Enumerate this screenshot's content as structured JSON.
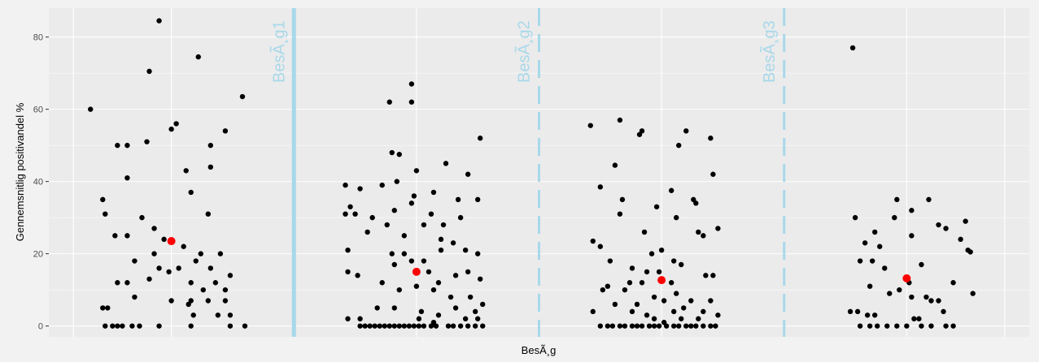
{
  "chart_data": {
    "type": "scatter",
    "title": "",
    "xlabel": "BesÃ¸g",
    "ylabel": "Gennemsnitlig positivandel %",
    "ylim": [
      -3,
      88
    ],
    "yticks": [
      0,
      20,
      40,
      60,
      80
    ],
    "xlim": [
      0.5,
      4.5
    ],
    "grid": true,
    "background": "#ebebeb",
    "grid_color": "#ffffff",
    "point_color": "#000000",
    "mean_color": "#ff0000",
    "vline_color": "#a8d8ea",
    "vlines": [
      {
        "x": 1.5,
        "label": "BesÃ¸g1",
        "style": "solid"
      },
      {
        "x": 2.5,
        "label": "BesÃ¸g2",
        "style": "dashed"
      },
      {
        "x": 3.5,
        "label": "BesÃ¸g3",
        "style": "dashed"
      }
    ],
    "means": [
      {
        "x": 1.0,
        "y": 23.5
      },
      {
        "x": 2.0,
        "y": 15.0
      },
      {
        "x": 3.0,
        "y": 12.7
      },
      {
        "x": 4.0,
        "y": 13.2
      }
    ],
    "points": [
      [
        0.95,
        84.5
      ],
      [
        0.67,
        60
      ],
      [
        1.02,
        56
      ],
      [
        1.0,
        54.5
      ],
      [
        0.78,
        50
      ],
      [
        0.82,
        50
      ],
      [
        0.9,
        51
      ],
      [
        1.16,
        50
      ],
      [
        1.22,
        54
      ],
      [
        1.11,
        74.5
      ],
      [
        1.29,
        63.5
      ],
      [
        0.91,
        70.5
      ],
      [
        0.82,
        41
      ],
      [
        1.06,
        43
      ],
      [
        1.16,
        44
      ],
      [
        1.08,
        37
      ],
      [
        0.72,
        35
      ],
      [
        0.73,
        31
      ],
      [
        1.15,
        31
      ],
      [
        0.88,
        30
      ],
      [
        0.82,
        25
      ],
      [
        0.77,
        25
      ],
      [
        0.93,
        27
      ],
      [
        0.97,
        24
      ],
      [
        1.05,
        22
      ],
      [
        1.12,
        20
      ],
      [
        1.2,
        20
      ],
      [
        1.1,
        18
      ],
      [
        1.16,
        16
      ],
      [
        1.24,
        14
      ],
      [
        0.85,
        18
      ],
      [
        0.95,
        16
      ],
      [
        0.99,
        15
      ],
      [
        1.03,
        16
      ],
      [
        0.82,
        12
      ],
      [
        1.08,
        12
      ],
      [
        1.22,
        10
      ],
      [
        0.85,
        8
      ],
      [
        1.0,
        7
      ],
      [
        1.08,
        7
      ],
      [
        1.15,
        7
      ],
      [
        1.22,
        7
      ],
      [
        0.78,
        12
      ],
      [
        0.72,
        5
      ],
      [
        0.74,
        5
      ],
      [
        1.09,
        3
      ],
      [
        1.19,
        3
      ],
      [
        1.24,
        3
      ],
      [
        0.73,
        0
      ],
      [
        0.76,
        0
      ],
      [
        0.78,
        0
      ],
      [
        0.8,
        0
      ],
      [
        0.84,
        0
      ],
      [
        0.87,
        0
      ],
      [
        0.95,
        0
      ],
      [
        1.08,
        0
      ],
      [
        1.24,
        0
      ],
      [
        1.3,
        0
      ],
      [
        1.07,
        6
      ],
      [
        1.13,
        10
      ],
      [
        1.18,
        12
      ],
      [
        0.91,
        13
      ],
      [
        0.93,
        20
      ],
      [
        1.98,
        67
      ],
      [
        1.89,
        62
      ],
      [
        1.98,
        62
      ],
      [
        1.9,
        48
      ],
      [
        1.93,
        47.5
      ],
      [
        2.0,
        43
      ],
      [
        2.12,
        45
      ],
      [
        2.21,
        42
      ],
      [
        2.26,
        52
      ],
      [
        1.71,
        39
      ],
      [
        1.77,
        38
      ],
      [
        1.86,
        39
      ],
      [
        1.92,
        40
      ],
      [
        1.99,
        36
      ],
      [
        2.07,
        37
      ],
      [
        2.17,
        35
      ],
      [
        2.25,
        35
      ],
      [
        1.73,
        33
      ],
      [
        1.71,
        31
      ],
      [
        1.75,
        31
      ],
      [
        1.82,
        30
      ],
      [
        1.91,
        32
      ],
      [
        1.98,
        34
      ],
      [
        2.06,
        31
      ],
      [
        2.11,
        28
      ],
      [
        2.18,
        30
      ],
      [
        1.8,
        26
      ],
      [
        1.88,
        28
      ],
      [
        1.95,
        25
      ],
      [
        2.03,
        28
      ],
      [
        2.1,
        24
      ],
      [
        2.15,
        23
      ],
      [
        1.72,
        21
      ],
      [
        1.9,
        20
      ],
      [
        1.95,
        20
      ],
      [
        2.03,
        18
      ],
      [
        2.1,
        21
      ],
      [
        2.2,
        21
      ],
      [
        2.25,
        20
      ],
      [
        1.72,
        15
      ],
      [
        1.76,
        14
      ],
      [
        1.86,
        12
      ],
      [
        1.91,
        17
      ],
      [
        1.98,
        18
      ],
      [
        2.05,
        15
      ],
      [
        2.09,
        12
      ],
      [
        2.16,
        14
      ],
      [
        2.21,
        15
      ],
      [
        2.26,
        13
      ],
      [
        1.93,
        10
      ],
      [
        2.0,
        11
      ],
      [
        2.07,
        10
      ],
      [
        2.14,
        8
      ],
      [
        2.22,
        8
      ],
      [
        2.27,
        6
      ],
      [
        1.84,
        5
      ],
      [
        1.91,
        5
      ],
      [
        2.02,
        4
      ],
      [
        2.09,
        3
      ],
      [
        2.16,
        5
      ],
      [
        2.24,
        4
      ],
      [
        1.72,
        2
      ],
      [
        1.77,
        2
      ],
      [
        2.01,
        2
      ],
      [
        2.07,
        1
      ],
      [
        2.2,
        2
      ],
      [
        2.25,
        2
      ],
      [
        1.77,
        0
      ],
      [
        1.79,
        0
      ],
      [
        1.81,
        0
      ],
      [
        1.83,
        0
      ],
      [
        1.85,
        0
      ],
      [
        1.87,
        0
      ],
      [
        1.89,
        0
      ],
      [
        1.91,
        0
      ],
      [
        1.93,
        0
      ],
      [
        1.95,
        0
      ],
      [
        1.97,
        0
      ],
      [
        1.99,
        0
      ],
      [
        2.01,
        0
      ],
      [
        2.03,
        0
      ],
      [
        2.06,
        0
      ],
      [
        2.08,
        0
      ],
      [
        2.13,
        0
      ],
      [
        2.15,
        0
      ],
      [
        2.18,
        0
      ],
      [
        2.21,
        0
      ],
      [
        2.24,
        0
      ],
      [
        2.27,
        0
      ],
      [
        2.71,
        55.5
      ],
      [
        2.83,
        57
      ],
      [
        2.91,
        53
      ],
      [
        2.92,
        54
      ],
      [
        3.1,
        54
      ],
      [
        3.07,
        50
      ],
      [
        3.2,
        52
      ],
      [
        2.81,
        44.5
      ],
      [
        3.21,
        42
      ],
      [
        2.75,
        38.5
      ],
      [
        3.04,
        37.5
      ],
      [
        2.84,
        35
      ],
      [
        3.13,
        35
      ],
      [
        3.14,
        34
      ],
      [
        2.98,
        33
      ],
      [
        2.83,
        31
      ],
      [
        3.06,
        30
      ],
      [
        3.23,
        27
      ],
      [
        2.72,
        23.5
      ],
      [
        2.75,
        22
      ],
      [
        2.93,
        26
      ],
      [
        3.15,
        26
      ],
      [
        3.17,
        25
      ],
      [
        3.0,
        21
      ],
      [
        2.96,
        20
      ],
      [
        3.05,
        18
      ],
      [
        2.79,
        18
      ],
      [
        2.88,
        16
      ],
      [
        3.08,
        17
      ],
      [
        2.94,
        15
      ],
      [
        2.99,
        15
      ],
      [
        3.18,
        14
      ],
      [
        3.21,
        14
      ],
      [
        2.87,
        12
      ],
      [
        2.78,
        11
      ],
      [
        2.76,
        10
      ],
      [
        2.85,
        10
      ],
      [
        2.92,
        12
      ],
      [
        3.04,
        12
      ],
      [
        3.06,
        9
      ],
      [
        3.12,
        7
      ],
      [
        3.2,
        7
      ],
      [
        2.81,
        6
      ],
      [
        2.9,
        6
      ],
      [
        2.97,
        8
      ],
      [
        3.01,
        7
      ],
      [
        3.09,
        5
      ],
      [
        2.72,
        4
      ],
      [
        2.88,
        4
      ],
      [
        2.94,
        3
      ],
      [
        3.05,
        4
      ],
      [
        3.17,
        4
      ],
      [
        3.23,
        3
      ],
      [
        2.97,
        2
      ],
      [
        3.01,
        1
      ],
      [
        3.08,
        2
      ],
      [
        3.15,
        2
      ],
      [
        2.75,
        0
      ],
      [
        2.78,
        0
      ],
      [
        2.8,
        0
      ],
      [
        2.83,
        0
      ],
      [
        2.85,
        0
      ],
      [
        2.88,
        0
      ],
      [
        2.9,
        0
      ],
      [
        2.92,
        0
      ],
      [
        2.95,
        0
      ],
      [
        2.97,
        0
      ],
      [
        2.99,
        0
      ],
      [
        3.02,
        0
      ],
      [
        3.05,
        0
      ],
      [
        3.07,
        0
      ],
      [
        3.1,
        0
      ],
      [
        3.12,
        0
      ],
      [
        3.14,
        0
      ],
      [
        3.17,
        0
      ],
      [
        3.2,
        0
      ],
      [
        3.22,
        0
      ],
      [
        3.78,
        77
      ],
      [
        3.79,
        30
      ],
      [
        3.96,
        35
      ],
      [
        4.02,
        32
      ],
      [
        4.09,
        35
      ],
      [
        4.13,
        28
      ],
      [
        4.16,
        27
      ],
      [
        3.95,
        30
      ],
      [
        3.87,
        26
      ],
      [
        3.89,
        22
      ],
      [
        3.83,
        23
      ],
      [
        3.86,
        18
      ],
      [
        3.91,
        16
      ],
      [
        3.81,
        18
      ],
      [
        4.02,
        25
      ],
      [
        4.06,
        17
      ],
      [
        4.24,
        29
      ],
      [
        4.22,
        24
      ],
      [
        4.25,
        21
      ],
      [
        4.26,
        20.5
      ],
      [
        4.02,
        8
      ],
      [
        4.08,
        8
      ],
      [
        4.1,
        7
      ],
      [
        4.13,
        7
      ],
      [
        4.19,
        12
      ],
      [
        4.27,
        9
      ],
      [
        4.01,
        12
      ],
      [
        3.97,
        10
      ],
      [
        3.93,
        9
      ],
      [
        3.85,
        11
      ],
      [
        3.77,
        4
      ],
      [
        3.8,
        4
      ],
      [
        3.84,
        3
      ],
      [
        3.87,
        3
      ],
      [
        4.03,
        2
      ],
      [
        4.05,
        2
      ],
      [
        4.15,
        4
      ],
      [
        3.81,
        0
      ],
      [
        3.85,
        0
      ],
      [
        3.88,
        0
      ],
      [
        3.92,
        0
      ],
      [
        3.96,
        0
      ],
      [
        4.0,
        0
      ],
      [
        4.06,
        0
      ],
      [
        4.1,
        0
      ],
      [
        4.16,
        0
      ],
      [
        4.19,
        0
      ]
    ]
  }
}
